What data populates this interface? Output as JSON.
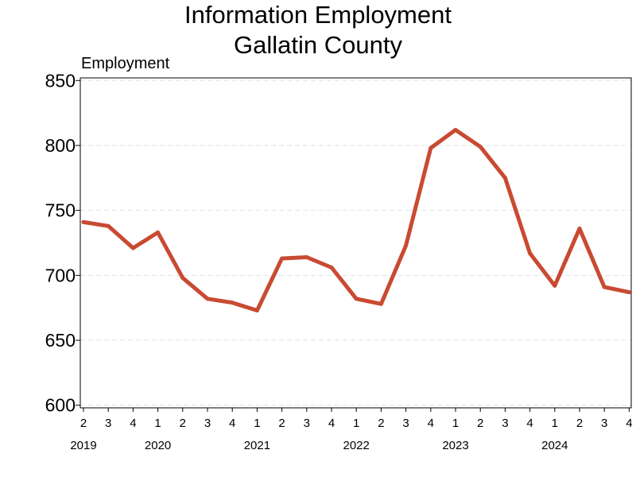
{
  "chart_data": {
    "type": "line",
    "title": [
      "Information Employment",
      "Gallatin County"
    ],
    "ylabel": "Employment",
    "xlabel": "",
    "ylim": [
      598,
      852
    ],
    "yticks": [
      600,
      650,
      700,
      750,
      800,
      850
    ],
    "grid": "horizontal dashed",
    "legend": "none",
    "colors": {
      "line": "#c94a32",
      "grid": "#e3e3e3",
      "axis": "#000000"
    },
    "quarters": [
      "2",
      "3",
      "4",
      "1",
      "2",
      "3",
      "4",
      "1",
      "2",
      "3",
      "4",
      "1",
      "2",
      "3",
      "4",
      "1",
      "2",
      "3",
      "4",
      "1",
      "2",
      "3",
      "4"
    ],
    "years": [
      {
        "label": "2019",
        "index": 0
      },
      {
        "label": "2020",
        "index": 3
      },
      {
        "label": "2021",
        "index": 7
      },
      {
        "label": "2022",
        "index": 11
      },
      {
        "label": "2023",
        "index": 15
      },
      {
        "label": "2024",
        "index": 19
      }
    ],
    "series": [
      {
        "values": [
          741,
          738,
          721,
          733,
          698,
          682,
          679,
          673,
          713,
          714,
          706,
          682,
          678,
          723,
          798,
          812,
          799,
          775,
          717,
          692,
          736,
          691,
          687
        ]
      }
    ]
  }
}
